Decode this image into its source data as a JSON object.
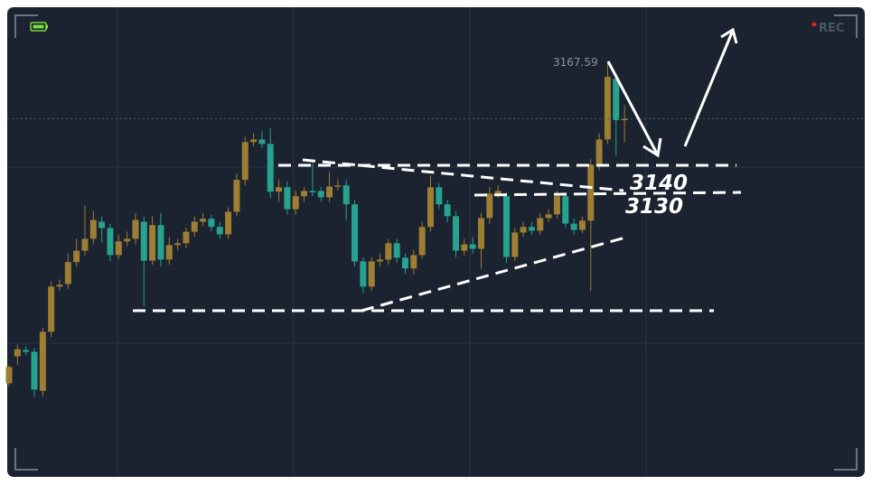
{
  "status": {
    "recording": "REC"
  },
  "chart_data": {
    "type": "candlestick",
    "open": [
      3081.0,
      3088.3,
      3090.0,
      3089.5,
      3079.0,
      3094.9,
      3107.1,
      3107.8,
      3113.7,
      3116.8,
      3120.0,
      3124.6,
      3122.9,
      3115.6,
      3119.3,
      3120.0,
      3124.6,
      3114.1,
      3123.7,
      3114.4,
      3118.3,
      3118.8,
      3121.9,
      3124.6,
      3125.4,
      3123.2,
      3121.2,
      3127.3,
      3135.9,
      3146.1,
      3146.8,
      3145.6,
      3132.7,
      3133.9,
      3128.0,
      3131.5,
      3132.9,
      3132.9,
      3131.2,
      3134.1,
      3134.4,
      3129.3,
      3113.9,
      3107.1,
      3113.9,
      3114.4,
      3118.8,
      3114.9,
      3112.0,
      3115.6,
      3123.2,
      3133.9,
      3129.3,
      3126.1,
      3116.8,
      3118.5,
      3117.3,
      3125.6,
      3132.2,
      3131.5,
      3115.1,
      3121.7,
      3123.2,
      3122.2,
      3125.6,
      3126.6,
      3131.5,
      3124.1,
      3122.4,
      3124.9,
      3140.0,
      3146.8,
      3163.2,
      3152.0
    ],
    "high": [
      3085.8,
      3091.5,
      3091.0,
      3090.5,
      3096.0,
      3108.5,
      3109.0,
      3116.0,
      3120.0,
      3129.0,
      3127.5,
      3126.0,
      3124.0,
      3121.0,
      3122.0,
      3127.0,
      3126.0,
      3126.0,
      3127.0,
      3120.5,
      3120.0,
      3123.0,
      3126.0,
      3127.0,
      3126.5,
      3124.5,
      3128.5,
      3137.5,
      3147.5,
      3148.5,
      3149.0,
      3149.8,
      3136.0,
      3135.5,
      3133.0,
      3134.0,
      3140.5,
      3134.0,
      3138.0,
      3136.0,
      3136.0,
      3130.5,
      3115.0,
      3115.0,
      3116.0,
      3120.0,
      3120.0,
      3116.0,
      3117.0,
      3124.5,
      3137.0,
      3135.0,
      3130.5,
      3127.5,
      3120.0,
      3120.5,
      3127.0,
      3134.0,
      3134.5,
      3132.5,
      3123.0,
      3124.5,
      3124.5,
      3127.0,
      3128.0,
      3133.0,
      3132.5,
      3125.5,
      3126.0,
      3141.5,
      3148.5,
      3167.59,
      3164.5,
      3156.0
    ],
    "low": [
      3080.2,
      3086.0,
      3088.5,
      3077.3,
      3077.5,
      3093.5,
      3106.0,
      3106.5,
      3112.5,
      3115.5,
      3118.5,
      3119.0,
      3114.0,
      3114.5,
      3118.0,
      3118.5,
      3101.7,
      3113.0,
      3112.5,
      3113.0,
      3117.0,
      3117.5,
      3120.5,
      3123.5,
      3122.0,
      3120.0,
      3120.0,
      3126.0,
      3134.5,
      3145.0,
      3144.5,
      3131.0,
      3130.0,
      3126.5,
      3126.5,
      3130.0,
      3131.5,
      3130.0,
      3130.0,
      3133.0,
      3125.0,
      3112.5,
      3105.4,
      3106.0,
      3112.5,
      3113.0,
      3113.5,
      3110.5,
      3110.5,
      3114.5,
      3122.0,
      3128.0,
      3124.5,
      3115.0,
      3115.5,
      3116.0,
      3112.0,
      3124.0,
      3131.0,
      3113.5,
      3114.0,
      3120.5,
      3121.0,
      3121.0,
      3124.5,
      3125.5,
      3123.0,
      3121.0,
      3121.5,
      3105.9,
      3138.5,
      3145.5,
      3142.5,
      3146.0
    ],
    "close": [
      3085.4,
      3090.2,
      3089.5,
      3079.3,
      3094.9,
      3107.1,
      3107.6,
      3113.7,
      3116.8,
      3120.0,
      3125.1,
      3122.9,
      3115.6,
      3119.3,
      3120.0,
      3125.1,
      3114.1,
      3123.7,
      3114.4,
      3118.3,
      3118.8,
      3121.9,
      3124.6,
      3125.4,
      3123.2,
      3121.2,
      3127.3,
      3135.9,
      3146.1,
      3146.8,
      3145.6,
      3132.7,
      3133.9,
      3128.0,
      3131.5,
      3132.9,
      3132.7,
      3131.2,
      3134.1,
      3134.4,
      3129.3,
      3113.9,
      3107.1,
      3113.9,
      3114.4,
      3118.8,
      3114.9,
      3112.0,
      3115.6,
      3123.2,
      3133.9,
      3129.3,
      3126.1,
      3116.8,
      3118.5,
      3117.3,
      3125.6,
      3132.2,
      3132.9,
      3115.1,
      3121.7,
      3123.2,
      3122.2,
      3125.6,
      3126.6,
      3131.5,
      3124.1,
      3122.4,
      3124.9,
      3140.0,
      3146.8,
      3163.7,
      3152.0,
      3152.4
    ],
    "up_color": "#9e7e32",
    "down_color": "#26a28f",
    "price_line_color": "#1f6e5c",
    "ylim": [
      3056,
      3182
    ],
    "annotations": [
      "3167.59",
      "3140",
      "3130"
    ]
  }
}
